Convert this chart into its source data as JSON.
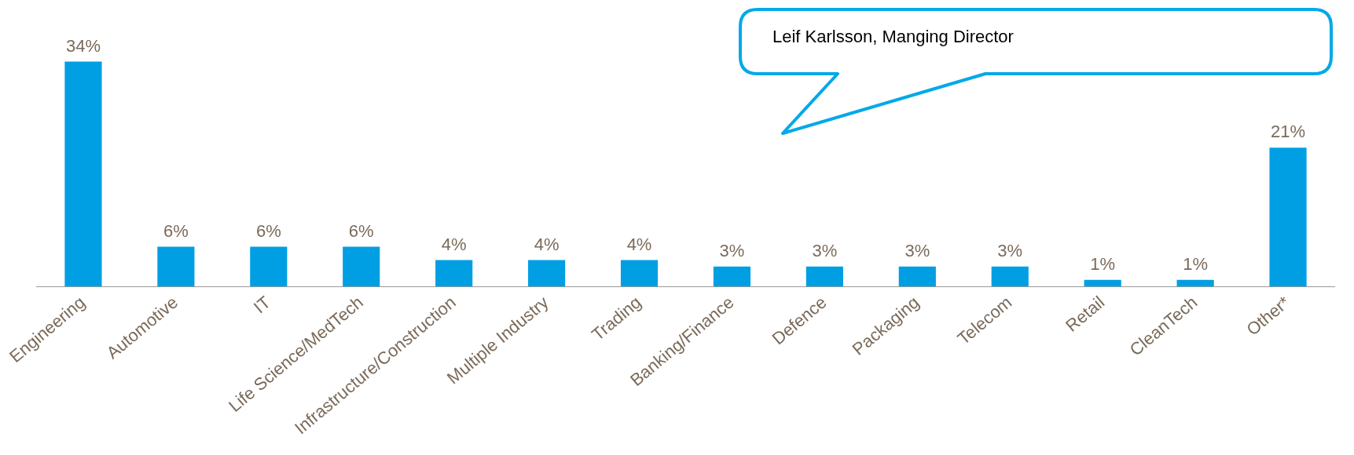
{
  "chart_data": {
    "type": "bar",
    "categories": [
      "Engineering",
      "Automotive",
      "IT",
      "Life Science/MedTech",
      "Infrastructure/Construction",
      "Multiple Industry",
      "Trading",
      "Banking/Finance",
      "Defence",
      "Packaging",
      "Telecom",
      "Retail",
      "CleanTech",
      "Other*"
    ],
    "values": [
      34,
      6,
      6,
      6,
      4,
      4,
      4,
      3,
      3,
      3,
      3,
      1,
      1,
      21
    ],
    "value_labels": [
      "34%",
      "6%",
      "6%",
      "6%",
      "4%",
      "4%",
      "4%",
      "3%",
      "3%",
      "3%",
      "3%",
      "1%",
      "1%",
      "21%"
    ],
    "color": "#009fe3",
    "grid": false,
    "legend": false,
    "annotations": [
      "Leif Karlsson, Manging Director"
    ]
  }
}
